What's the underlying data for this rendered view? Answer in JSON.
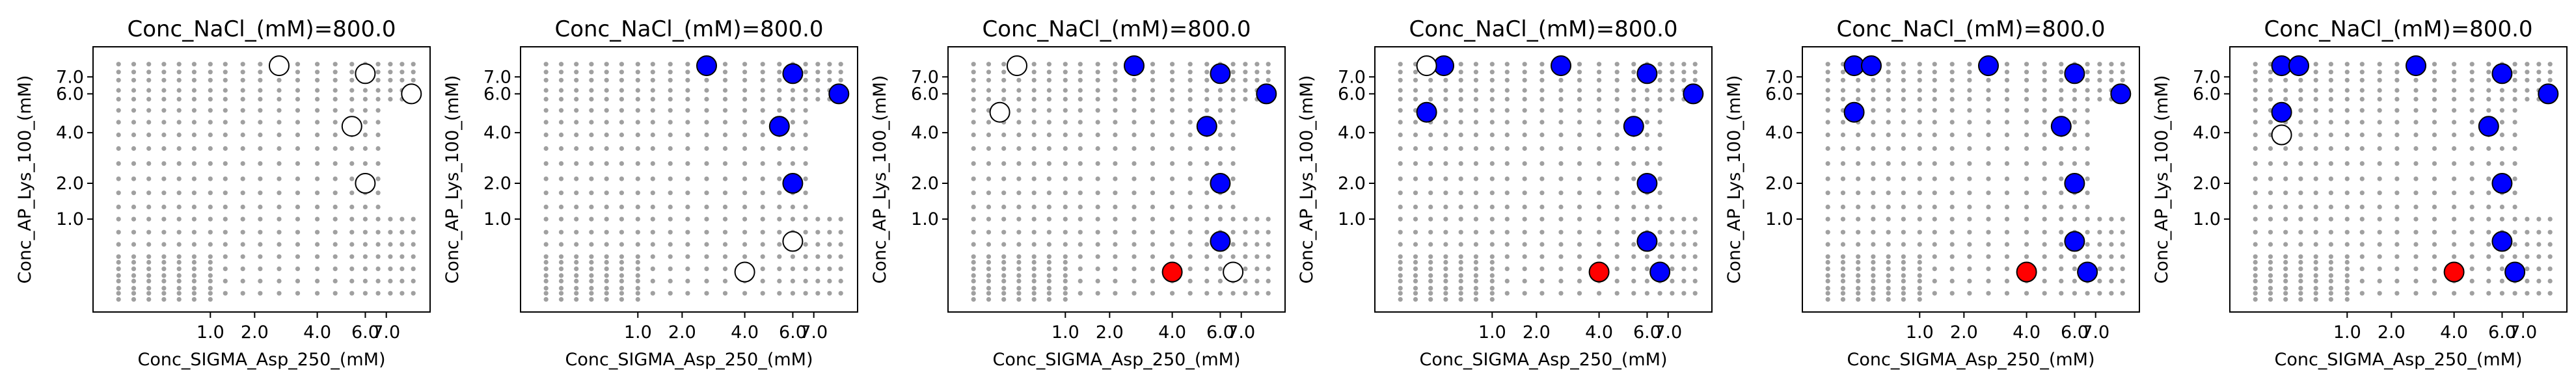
{
  "figure": {
    "background": "#ffffff",
    "colors": {
      "grid_points": "#808080",
      "hollow": "#ffffff",
      "blue": "#0000ff",
      "red": "#ff0000",
      "edge": "#000000"
    }
  },
  "chart_data": [
    {
      "type": "scatter",
      "title": "Conc_NaCl_(mM)=800.0",
      "xlabel": "Conc_SIGMA_Asp_250_(mM)",
      "ylabel": "Conc_AP_Lys_100_(mM)",
      "xlim": [
        0.0,
        8.75
      ],
      "ylim": [
        -0.2,
        8.0
      ],
      "scale": "sqrt",
      "xticks": [
        1.0,
        2.0,
        4.0,
        6.0,
        7.0
      ],
      "xtick_labels": [
        "1.0",
        "2.0",
        "4.0",
        "6.0",
        "7.0"
      ],
      "yticks": [
        1.0,
        2.0,
        4.0,
        6.0,
        7.0
      ],
      "ytick_labels": [
        "1.0",
        "2.0",
        "4.0",
        "6.0",
        "7.0"
      ],
      "grid": false,
      "points": [
        {
          "x": 2.7,
          "y": 7.7,
          "color": "white"
        },
        {
          "x": 6.0,
          "y": 7.2,
          "color": "white"
        },
        {
          "x": 8.3,
          "y": 6.0,
          "color": "white"
        },
        {
          "x": 5.4,
          "y": 4.3,
          "color": "white"
        },
        {
          "x": 6.0,
          "y": 2.0,
          "color": "white"
        }
      ]
    },
    {
      "type": "scatter",
      "title": "Conc_NaCl_(mM)=800.0",
      "xlabel": "Conc_SIGMA_Asp_250_(mM)",
      "ylabel": "Conc_AP_Lys_100_(mM)",
      "xlim": [
        0.0,
        8.75
      ],
      "ylim": [
        -0.2,
        8.0
      ],
      "scale": "sqrt",
      "xticks": [
        1.0,
        2.0,
        4.0,
        6.0,
        7.0
      ],
      "xtick_labels": [
        "1.0",
        "2.0",
        "4.0",
        "6.0",
        "7.0"
      ],
      "yticks": [
        1.0,
        2.0,
        4.0,
        6.0,
        7.0
      ],
      "ytick_labels": [
        "1.0",
        "2.0",
        "4.0",
        "6.0",
        "7.0"
      ],
      "grid": false,
      "points": [
        {
          "x": 2.7,
          "y": 7.7,
          "color": "blue"
        },
        {
          "x": 6.0,
          "y": 7.2,
          "color": "blue"
        },
        {
          "x": 8.3,
          "y": 6.0,
          "color": "blue"
        },
        {
          "x": 5.4,
          "y": 4.3,
          "color": "blue"
        },
        {
          "x": 6.0,
          "y": 2.0,
          "color": "blue"
        },
        {
          "x": 4.0,
          "y": 0.15,
          "color": "white"
        },
        {
          "x": 6.0,
          "y": 0.55,
          "color": "white"
        }
      ]
    },
    {
      "type": "scatter",
      "title": "Conc_NaCl_(mM)=800.0",
      "xlabel": "Conc_SIGMA_Asp_250_(mM)",
      "ylabel": "Conc_AP_Lys_100_(mM)",
      "xlim": [
        0.0,
        8.75
      ],
      "ylim": [
        -0.2,
        8.0
      ],
      "scale": "sqrt",
      "xticks": [
        1.0,
        2.0,
        4.0,
        6.0,
        7.0
      ],
      "xtick_labels": [
        "1.0",
        "2.0",
        "4.0",
        "6.0",
        "7.0"
      ],
      "yticks": [
        1.0,
        2.0,
        4.0,
        6.0,
        7.0
      ],
      "ytick_labels": [
        "1.0",
        "2.0",
        "4.0",
        "6.0",
        "7.0"
      ],
      "grid": false,
      "points": [
        {
          "x": 0.3,
          "y": 7.7,
          "color": "white"
        },
        {
          "x": 2.7,
          "y": 7.7,
          "color": "blue"
        },
        {
          "x": 6.0,
          "y": 7.2,
          "color": "blue"
        },
        {
          "x": 8.3,
          "y": 6.0,
          "color": "blue"
        },
        {
          "x": 0.15,
          "y": 5.0,
          "color": "white"
        },
        {
          "x": 5.4,
          "y": 4.3,
          "color": "blue"
        },
        {
          "x": 6.0,
          "y": 2.0,
          "color": "blue"
        },
        {
          "x": 6.0,
          "y": 0.55,
          "color": "blue"
        },
        {
          "x": 6.6,
          "y": 0.15,
          "color": "white"
        },
        {
          "x": 4.0,
          "y": 0.15,
          "color": "red"
        }
      ]
    },
    {
      "type": "scatter",
      "title": "Conc_NaCl_(mM)=800.0",
      "xlabel": "Conc_SIGMA_Asp_250_(mM)",
      "ylabel": "Conc_AP_Lys_100_(mM)",
      "xlim": [
        0.0,
        8.75
      ],
      "ylim": [
        -0.2,
        8.0
      ],
      "scale": "sqrt",
      "xticks": [
        1.0,
        2.0,
        4.0,
        6.0,
        7.0
      ],
      "xtick_labels": [
        "1.0",
        "2.0",
        "4.0",
        "6.0",
        "7.0"
      ],
      "yticks": [
        1.0,
        2.0,
        4.0,
        6.0,
        7.0
      ],
      "ytick_labels": [
        "1.0",
        "2.0",
        "4.0",
        "6.0",
        "7.0"
      ],
      "grid": false,
      "points": [
        {
          "x": 0.3,
          "y": 7.7,
          "color": "blue"
        },
        {
          "x": 0.15,
          "y": 7.7,
          "color": "white"
        },
        {
          "x": 2.7,
          "y": 7.7,
          "color": "blue"
        },
        {
          "x": 6.0,
          "y": 7.2,
          "color": "blue"
        },
        {
          "x": 8.3,
          "y": 6.0,
          "color": "blue"
        },
        {
          "x": 0.15,
          "y": 5.0,
          "color": "blue"
        },
        {
          "x": 5.4,
          "y": 4.3,
          "color": "blue"
        },
        {
          "x": 6.0,
          "y": 2.0,
          "color": "blue"
        },
        {
          "x": 6.0,
          "y": 0.55,
          "color": "blue"
        },
        {
          "x": 6.6,
          "y": 0.15,
          "color": "blue"
        },
        {
          "x": 4.0,
          "y": 0.15,
          "color": "red"
        }
      ]
    },
    {
      "type": "scatter",
      "title": "Conc_NaCl_(mM)=800.0",
      "xlabel": "Conc_SIGMA_Asp_250_(mM)",
      "ylabel": "Conc_AP_Lys_100_(mM)",
      "xlim": [
        0.0,
        8.75
      ],
      "ylim": [
        -0.2,
        8.0
      ],
      "scale": "sqrt",
      "xticks": [
        1.0,
        2.0,
        4.0,
        6.0,
        7.0
      ],
      "xtick_labels": [
        "1.0",
        "2.0",
        "4.0",
        "6.0",
        "7.0"
      ],
      "yticks": [
        1.0,
        2.0,
        4.0,
        6.0,
        7.0
      ],
      "ytick_labels": [
        "1.0",
        "2.0",
        "4.0",
        "6.0",
        "7.0"
      ],
      "grid": false,
      "points": [
        {
          "x": 0.15,
          "y": 7.7,
          "color": "blue"
        },
        {
          "x": 0.3,
          "y": 7.7,
          "color": "blue"
        },
        {
          "x": 2.7,
          "y": 7.7,
          "color": "blue"
        },
        {
          "x": 6.0,
          "y": 7.2,
          "color": "blue"
        },
        {
          "x": 8.3,
          "y": 6.0,
          "color": "blue"
        },
        {
          "x": 0.15,
          "y": 5.0,
          "color": "blue"
        },
        {
          "x": 5.4,
          "y": 4.3,
          "color": "blue"
        },
        {
          "x": 6.0,
          "y": 2.0,
          "color": "blue"
        },
        {
          "x": 6.0,
          "y": 0.55,
          "color": "blue"
        },
        {
          "x": 6.6,
          "y": 0.15,
          "color": "blue"
        },
        {
          "x": 4.0,
          "y": 0.15,
          "color": "red"
        }
      ]
    },
    {
      "type": "scatter",
      "title": "Conc_NaCl_(mM)=800.0",
      "xlabel": "Conc_SIGMA_Asp_250_(mM)",
      "ylabel": "Conc_AP_Lys_100_(mM)",
      "xlim": [
        0.0,
        8.75
      ],
      "ylim": [
        -0.2,
        8.0
      ],
      "scale": "sqrt",
      "xticks": [
        1.0,
        2.0,
        4.0,
        6.0,
        7.0
      ],
      "xtick_labels": [
        "1.0",
        "2.0",
        "4.0",
        "6.0",
        "7.0"
      ],
      "yticks": [
        1.0,
        2.0,
        4.0,
        6.0,
        7.0
      ],
      "ytick_labels": [
        "1.0",
        "2.0",
        "4.0",
        "6.0",
        "7.0"
      ],
      "grid": false,
      "points": [
        {
          "x": 0.15,
          "y": 7.7,
          "color": "blue"
        },
        {
          "x": 0.3,
          "y": 7.7,
          "color": "blue"
        },
        {
          "x": 2.7,
          "y": 7.7,
          "color": "blue"
        },
        {
          "x": 6.0,
          "y": 7.2,
          "color": "blue"
        },
        {
          "x": 8.3,
          "y": 6.0,
          "color": "blue"
        },
        {
          "x": 0.15,
          "y": 5.0,
          "color": "blue"
        },
        {
          "x": 5.4,
          "y": 4.3,
          "color": "blue"
        },
        {
          "x": 0.15,
          "y": 3.9,
          "color": "white"
        },
        {
          "x": 6.0,
          "y": 2.0,
          "color": "blue"
        },
        {
          "x": 6.0,
          "y": 0.55,
          "color": "blue"
        },
        {
          "x": 6.6,
          "y": 0.15,
          "color": "blue"
        },
        {
          "x": 4.0,
          "y": 0.15,
          "color": "red"
        }
      ]
    }
  ]
}
